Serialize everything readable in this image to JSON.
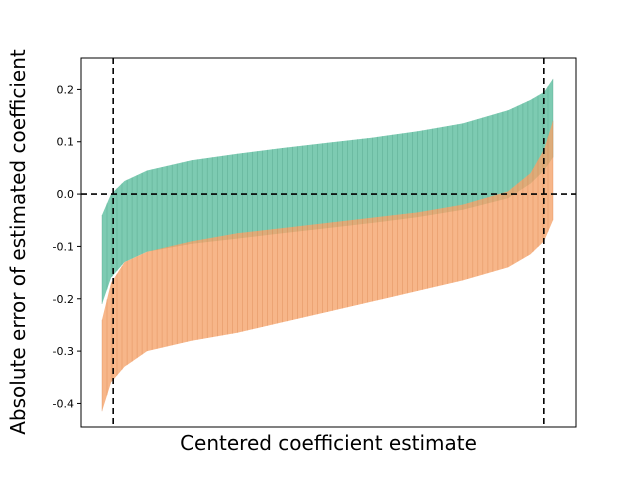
{
  "chart_data": {
    "type": "area",
    "xlabel": "Centered coefficient estimate",
    "ylabel": "Absolute error of estimated coefficient",
    "ylim": [
      -0.445,
      0.26
    ],
    "yticks": [
      -0.4,
      -0.3,
      -0.2,
      -0.1,
      0.0,
      0.1,
      0.2
    ],
    "ytick_labels": [
      "-0.4",
      "-0.3",
      "-0.2",
      "-0.1",
      "0.0",
      "0.1",
      "0.2"
    ],
    "xticks_shown": false,
    "grid": false,
    "reference_lines": {
      "horizontal_y": 0.0,
      "vertical_left_fraction": 0.065,
      "vertical_right_fraction": 0.935,
      "style": "dashed black"
    },
    "series": [
      {
        "color": "#66c2a5",
        "x": [
          0.0,
          0.02,
          0.05,
          0.1,
          0.2,
          0.3,
          0.4,
          0.5,
          0.6,
          0.7,
          0.8,
          0.9,
          0.95,
          0.98,
          1.0
        ],
        "upper": [
          -0.04,
          0.0,
          0.025,
          0.045,
          0.065,
          0.077,
          0.088,
          0.098,
          0.108,
          0.12,
          0.135,
          0.16,
          0.18,
          0.195,
          0.22
        ],
        "lower": [
          -0.21,
          -0.16,
          -0.13,
          -0.11,
          -0.095,
          -0.085,
          -0.075,
          -0.065,
          -0.055,
          -0.044,
          -0.03,
          -0.008,
          0.02,
          0.045,
          0.07
        ]
      },
      {
        "color": "#f5a46b",
        "x": [
          0.0,
          0.02,
          0.05,
          0.1,
          0.2,
          0.3,
          0.4,
          0.5,
          0.6,
          0.7,
          0.8,
          0.9,
          0.95,
          0.98,
          1.0
        ],
        "upper": [
          -0.24,
          -0.17,
          -0.13,
          -0.11,
          -0.09,
          -0.075,
          -0.065,
          -0.055,
          -0.045,
          -0.035,
          -0.02,
          0.005,
          0.04,
          0.085,
          0.14
        ],
        "lower": [
          -0.415,
          -0.36,
          -0.33,
          -0.3,
          -0.28,
          -0.265,
          -0.245,
          -0.225,
          -0.205,
          -0.185,
          -0.165,
          -0.14,
          -0.115,
          -0.09,
          -0.05
        ]
      }
    ]
  }
}
